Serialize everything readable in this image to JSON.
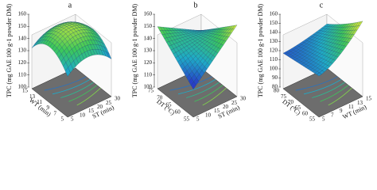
{
  "chart_data": [
    {
      "type": "surface",
      "title": "a",
      "zlabel": "TPC (mg GAE 100 g-1 powder DM)",
      "xlabel": "WT (min)",
      "xticks": [
        15,
        13,
        11,
        9,
        7,
        5
      ],
      "ylabel": "ST (min)",
      "yticks": [
        5,
        10,
        15,
        20,
        25,
        30
      ],
      "zticks": [
        100,
        110,
        120,
        130,
        140,
        150,
        160
      ]
    },
    {
      "type": "surface",
      "title": "b",
      "zlabel": "TPC (mg GAE 100 g-1 powder DM)",
      "xlabel": "DT (°C)",
      "xticks": [
        75,
        70,
        65,
        60,
        55
      ],
      "ylabel": "ST (min)",
      "yticks": [
        5,
        10,
        15,
        20,
        25,
        30
      ],
      "zticks": [
        100,
        110,
        120,
        130,
        140,
        150,
        160
      ]
    },
    {
      "type": "surface",
      "title": "c",
      "zlabel": "TPC (mg GAE 100 g-1 powder DM)",
      "xlabel": "DT (°C)",
      "xticks": [
        80,
        75,
        70,
        65,
        60,
        55
      ],
      "ylabel": "WT (min)",
      "yticks": [
        5,
        7,
        9,
        11,
        13,
        15
      ],
      "zticks": [
        80,
        90,
        100,
        110,
        120,
        130,
        140,
        150,
        160
      ]
    }
  ]
}
